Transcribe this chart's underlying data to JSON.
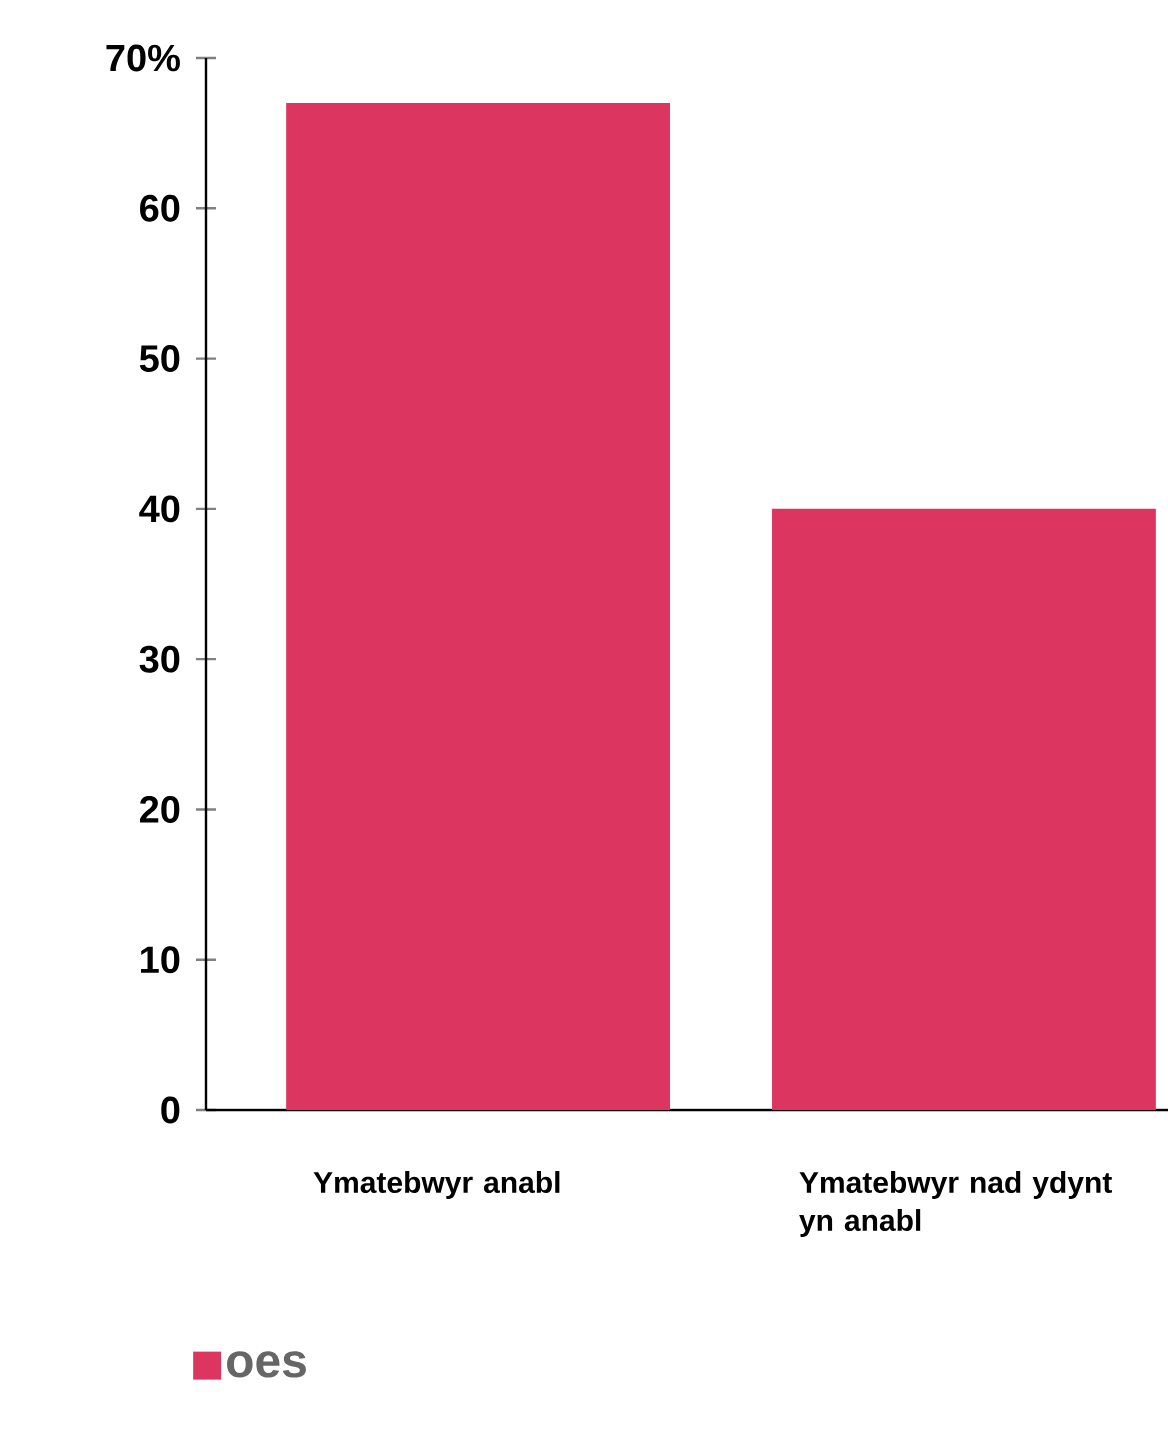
{
  "chart_data": {
    "type": "bar",
    "categories": [
      "Ymatebwyr anabl",
      "Ymatebwyr nad ydynt yn anabl"
    ],
    "series": [
      {
        "name": "oes",
        "color": "#dc3560",
        "values": [
          67,
          40
        ]
      }
    ],
    "ylim": [
      0,
      70
    ],
    "yticks": [
      0,
      10,
      20,
      30,
      40,
      50,
      60,
      {
        "value": 70,
        "label": "70%"
      }
    ],
    "legend": "bottom left"
  }
}
